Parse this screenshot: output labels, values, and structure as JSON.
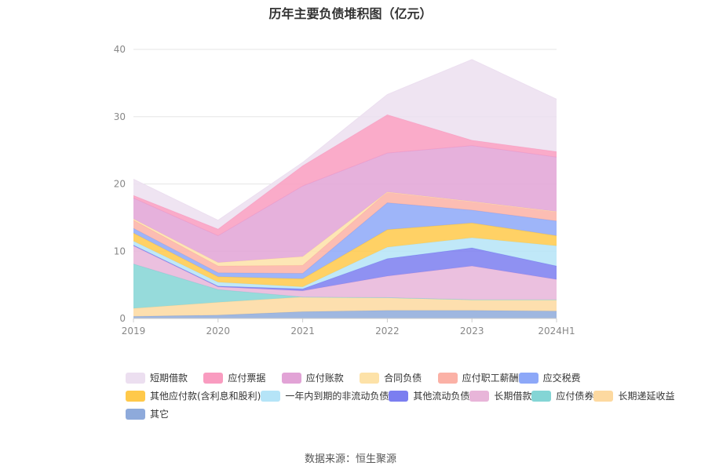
{
  "title": "历年主要负债堆积图（亿元）",
  "source": "数据来源：恒生聚源",
  "chart_data": {
    "type": "area",
    "stacked": true,
    "title": "历年主要负债堆积图（亿元）",
    "categories": [
      "2019",
      "2020",
      "2021",
      "2022",
      "2023",
      "2024H1"
    ],
    "ylim": [
      0,
      40
    ],
    "yticks": [
      0,
      10,
      20,
      30,
      40
    ],
    "grid": true,
    "legend_position": "bottom",
    "series": [
      {
        "name": "其它",
        "color": "#8eaadb",
        "values": [
          0.3,
          0.5,
          1.0,
          1.2,
          1.2,
          1.1
        ]
      },
      {
        "name": "长期递延收益",
        "color": "#fdd9a0",
        "values": [
          1.2,
          1.9,
          2.2,
          1.9,
          1.6,
          1.7
        ]
      },
      {
        "name": "应付债券",
        "color": "#84d5d5",
        "values": [
          6.6,
          1.9,
          0.0,
          0.0,
          0.0,
          0.0
        ]
      },
      {
        "name": "长期借款",
        "color": "#e8b5d9",
        "values": [
          2.7,
          0.4,
          0.9,
          3.2,
          5.0,
          3.0
        ]
      },
      {
        "name": "其他流动负债",
        "color": "#7b7ef0",
        "values": [
          0.1,
          0.1,
          0.3,
          2.6,
          2.7,
          2.0
        ]
      },
      {
        "name": "一年内到期的非流动负债",
        "color": "#b5e4f7",
        "values": [
          0.6,
          0.6,
          0.3,
          1.7,
          1.5,
          3.0
        ]
      },
      {
        "name": "其他应付款(含利息和股利)",
        "color": "#ffc94a",
        "values": [
          1.2,
          0.8,
          1.2,
          2.6,
          2.2,
          1.5
        ]
      },
      {
        "name": "应交税费",
        "color": "#8da8f8",
        "values": [
          0.7,
          0.6,
          0.8,
          4.0,
          1.9,
          2.2
        ]
      },
      {
        "name": "应付职工薪酬",
        "color": "#fbb1a6",
        "values": [
          1.2,
          1.0,
          1.2,
          1.6,
          1.3,
          1.4
        ]
      },
      {
        "name": "合同负债",
        "color": "#fde2a8",
        "values": [
          0.2,
          0.5,
          1.3,
          0.0,
          0.0,
          0.0
        ]
      },
      {
        "name": "应付账款",
        "color": "#e2a3d6",
        "values": [
          3.1,
          4.0,
          10.5,
          5.8,
          8.3,
          8.1
        ]
      },
      {
        "name": "应付票据",
        "color": "#f99cc0",
        "values": [
          0.4,
          1.0,
          3.0,
          5.7,
          0.8,
          0.8
        ]
      },
      {
        "name": "短期借款",
        "color": "#ecdff0",
        "values": [
          2.4,
          1.3,
          0.5,
          3.0,
          12.0,
          7.8
        ]
      }
    ],
    "legend_order": [
      "短期借款",
      "应付票据",
      "应付账款",
      "合同负债",
      "应付职工薪酬",
      "应交税费",
      "其他应付款(含利息和股利)",
      "一年内到期的非流动负债",
      "其他流动负债",
      "长期借款",
      "应付债券",
      "长期递延收益",
      "其它"
    ]
  }
}
